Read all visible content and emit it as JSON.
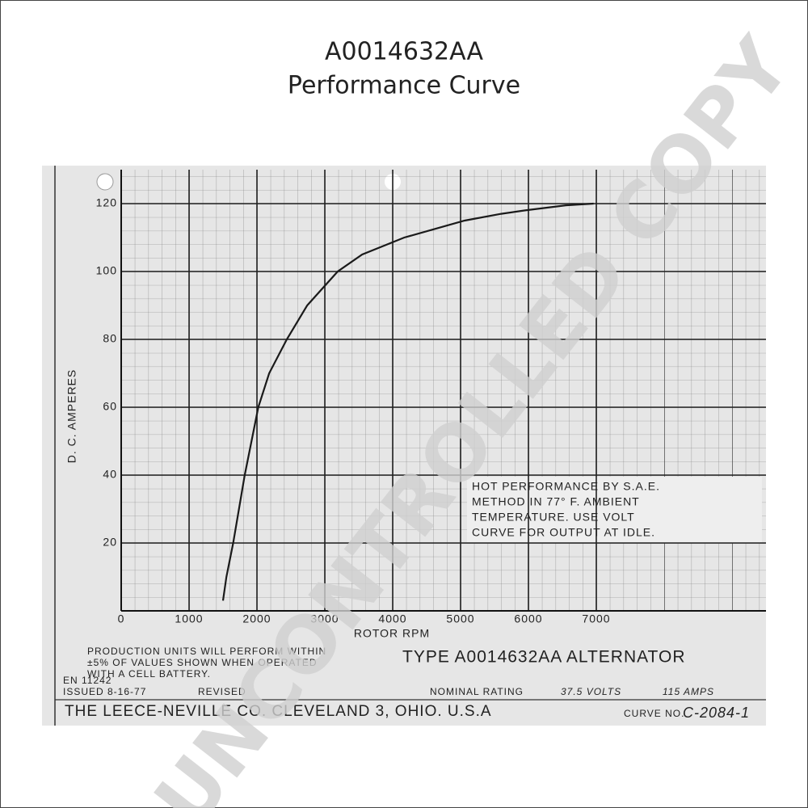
{
  "chart_data": {
    "type": "line",
    "title": "A0014632AA",
    "subtitle": "Performance Curve",
    "y_label": "D. C. AMPERES",
    "x_label": "ROTOR RPM",
    "x": [
      1500,
      1550,
      1650,
      1820,
      2020,
      2180,
      2440,
      2740,
      3190,
      3550,
      4170,
      5060,
      5600,
      5950,
      6550,
      6960
    ],
    "values": [
      3,
      10,
      20,
      40,
      60,
      70,
      80,
      90,
      100,
      105,
      110,
      115,
      117,
      118,
      119.5,
      120
    ],
    "color": "#1a1a1a",
    "xlim": [
      0,
      9500
    ],
    "ylim": [
      0,
      130
    ],
    "xticks": [
      0,
      1000,
      2000,
      3000,
      4000,
      5000,
      6000,
      7000
    ],
    "yticks": [
      20,
      40,
      60,
      80,
      100,
      120
    ],
    "grid": true,
    "note": [
      "HOT PERFORMANCE BY S.A.E.",
      "METHOD IN 77° F. AMBIENT",
      "TEMPERATURE. USE VOLT",
      "CURVE FOR OUTPUT AT IDLE."
    ],
    "production_note": [
      "PRODUCTION UNITS WILL PERFORM WITHIN",
      "±5% OF VALUES SHOWN WHEN OPERATED",
      "WITH A      CELL BATTERY."
    ],
    "type_label": "TYPE A0014632AA ALTERNATOR",
    "en_number": "EN 11242",
    "issued": "ISSUED 8-16-77",
    "revised": "REVISED",
    "nominal_rating": "NOMINAL RATING",
    "volts": "37.5 VOLTS",
    "amps": "115 AMPS",
    "company": "THE LEECE-NEVILLE CO. CLEVELAND 3, OHIO. U.S.A",
    "curve_no_label": "CURVE NO.",
    "curve_no": "C-2084-1",
    "watermark": "UNCONTROLLED COPY"
  }
}
